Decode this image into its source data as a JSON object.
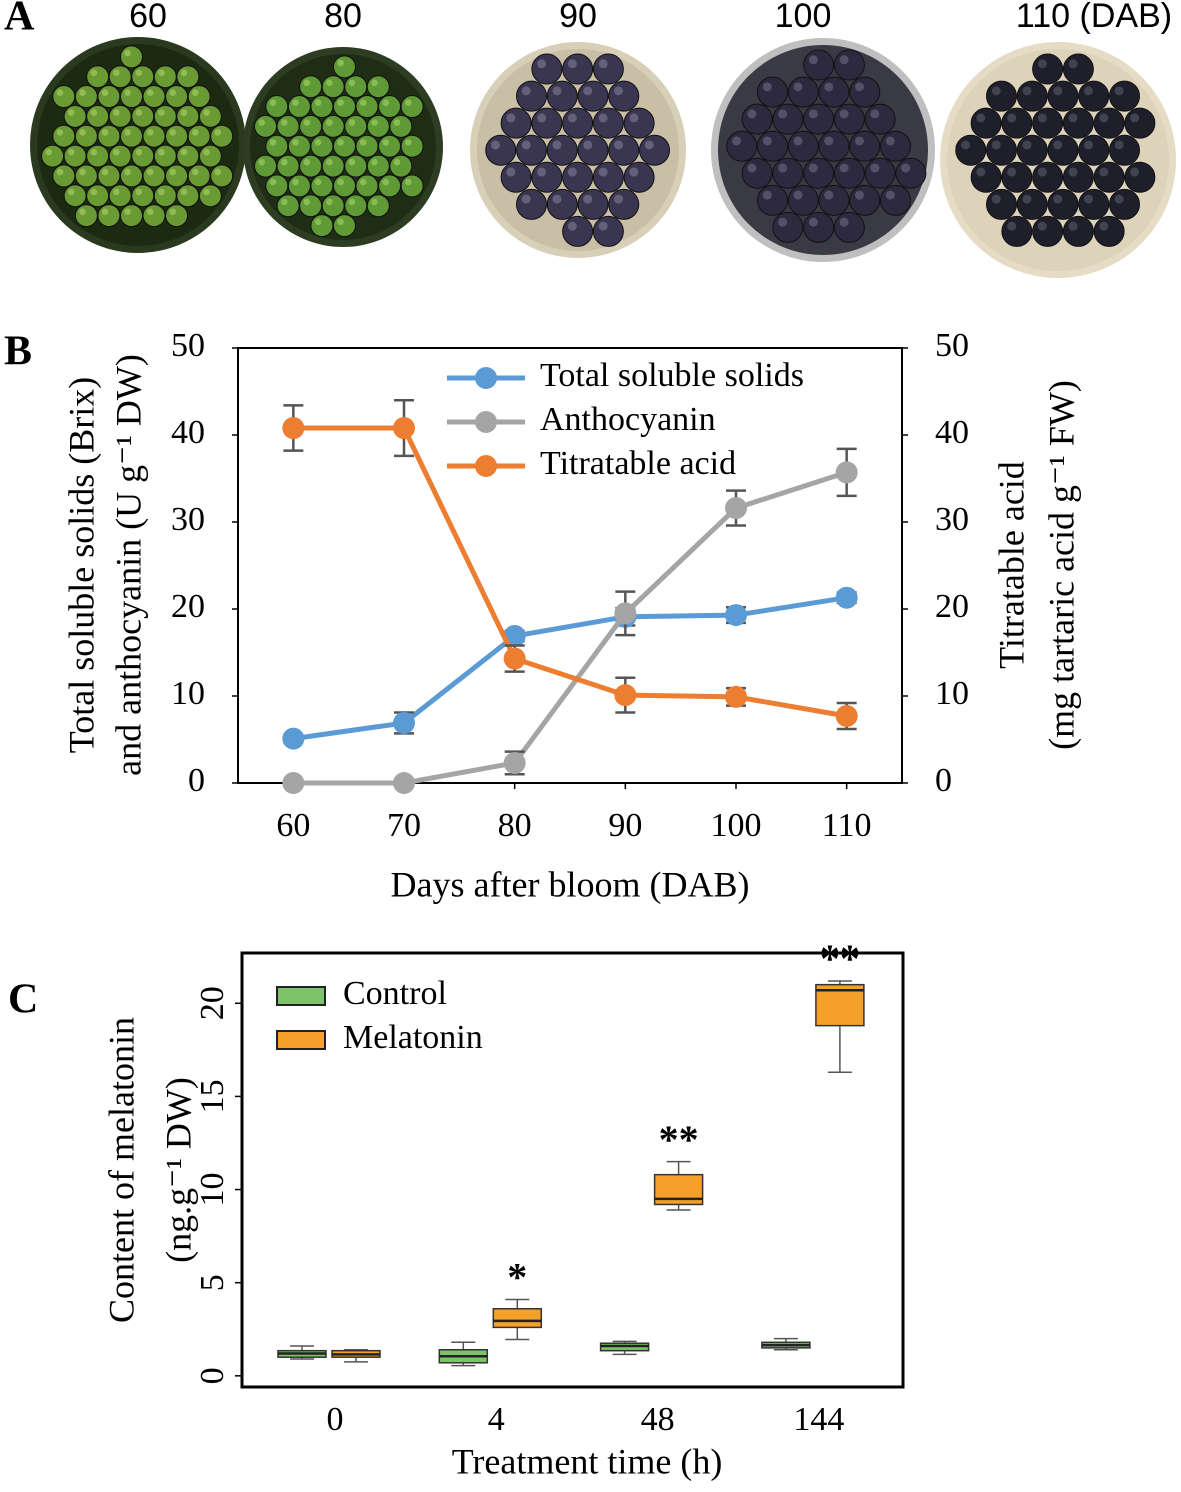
{
  "panel_a": {
    "letter": "A",
    "labels": [
      "60",
      "80",
      "90",
      "100",
      "110 (DAB)"
    ]
  },
  "chart_data": [
    {
      "type": "line",
      "letter": "B",
      "ylabel": [
        "Total soluble solids (Brix)",
        "and anthocyanin (U g⁻¹ DW)"
      ],
      "y2label": [
        "Titratable acid",
        "(mg tartaric acid g⁻¹ FW)"
      ],
      "xlabel": "Days after bloom (DAB)",
      "x": [
        60,
        70,
        80,
        90,
        100,
        110
      ],
      "xlim": [
        55,
        115
      ],
      "xticks": [
        60,
        70,
        80,
        90,
        100,
        110
      ],
      "ylim": [
        0,
        50
      ],
      "yticks": [
        0,
        10,
        20,
        30,
        40,
        50
      ],
      "y2lim": [
        0,
        50
      ],
      "y2ticks": [
        0,
        10,
        20,
        30,
        40,
        50
      ],
      "legend": "upper center",
      "series": [
        {
          "name": "Total soluble solids",
          "color": "#5b9bd5",
          "values": [
            5.1,
            6.9,
            16.9,
            19.1,
            19.3,
            21.3
          ],
          "errors": [
            0.4,
            1.2,
            0.6,
            1.0,
            0.9,
            0.6
          ]
        },
        {
          "name": "Anthocyanin",
          "color": "#a5a5a5",
          "values": [
            0,
            0,
            2.3,
            19.5,
            31.6,
            35.7
          ],
          "errors": [
            0.3,
            0.3,
            1.3,
            2.5,
            2.0,
            2.7
          ]
        },
        {
          "name": "Titratable acid",
          "color": "#ed7d31",
          "axis": "y2",
          "values": [
            40.8,
            40.8,
            14.3,
            10.1,
            9.9,
            7.7
          ],
          "errors": [
            2.6,
            3.2,
            1.5,
            2.0,
            1.0,
            1.5
          ]
        }
      ]
    },
    {
      "type": "box",
      "letter": "C",
      "ylabel": [
        "Content of melatonin",
        "(ng.g⁻¹ DW)"
      ],
      "xlabel": "Treatment time (h)",
      "categories": [
        "0",
        "4",
        "48",
        "144"
      ],
      "ylim": [
        -0.6,
        22.7
      ],
      "yticks": [
        0,
        5,
        10,
        15,
        20
      ],
      "legend": "upper left",
      "series": [
        {
          "name": "Control",
          "color": "#7cc36a",
          "values": [
            {
              "min": 0.9,
              "q1": 1.0,
              "median": 1.2,
              "q3": 1.35,
              "max": 1.6
            },
            {
              "min": 0.55,
              "q1": 0.7,
              "median": 1.05,
              "q3": 1.4,
              "max": 1.8
            },
            {
              "min": 1.15,
              "q1": 1.35,
              "median": 1.6,
              "q3": 1.75,
              "max": 1.85
            },
            {
              "min": 1.4,
              "q1": 1.5,
              "median": 1.65,
              "q3": 1.8,
              "max": 2.0
            }
          ]
        },
        {
          "name": "Melatonin",
          "color": "#f5a02a",
          "values": [
            {
              "min": 0.75,
              "q1": 1.0,
              "median": 1.15,
              "q3": 1.35,
              "max": 1.4
            },
            {
              "min": 1.95,
              "q1": 2.6,
              "median": 2.95,
              "q3": 3.6,
              "max": 4.1
            },
            {
              "min": 8.9,
              "q1": 9.2,
              "median": 9.5,
              "q3": 10.8,
              "max": 11.5
            },
            {
              "min": 16.3,
              "q1": 18.8,
              "median": 20.7,
              "q3": 21.0,
              "max": 21.2
            }
          ]
        }
      ],
      "annotations": [
        {
          "text": "*",
          "category": "4"
        },
        {
          "text": "**",
          "category": "48"
        },
        {
          "text": "**",
          "category": "144"
        }
      ]
    }
  ]
}
